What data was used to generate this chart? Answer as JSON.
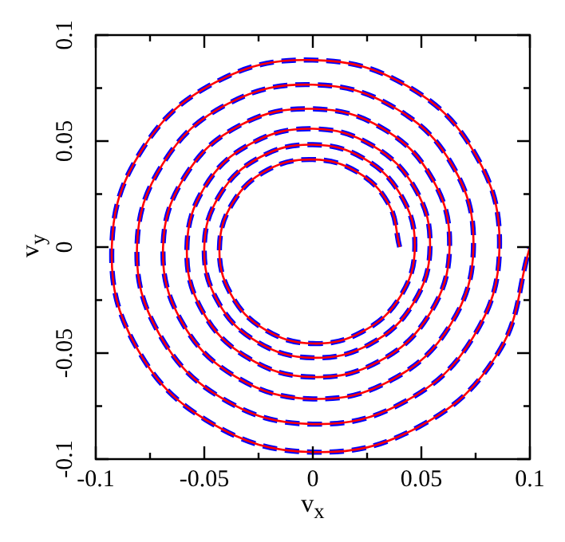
{
  "chart_data": {
    "type": "line",
    "xlabel": "v$_{x}$",
    "ylabel": "v$_{y}$",
    "marker": "none",
    "xlim": [
      -0.1,
      0.1
    ],
    "ylim": [
      -0.1,
      0.1
    ],
    "xticks": [
      -0.1,
      {
        "value": -0.075,
        "label": null
      },
      -0.05,
      {
        "value": -0.025,
        "label": null
      },
      0,
      {
        "value": 0.025,
        "label": null
      },
      0.05,
      {
        "value": 0.075,
        "label": null
      },
      0.1
    ],
    "yticks": [
      -0.1,
      {
        "value": -0.075,
        "label": null
      },
      -0.05,
      {
        "value": -0.025,
        "label": null
      },
      0,
      {
        "value": 0.025,
        "label": null
      },
      0.05,
      {
        "value": 0.075,
        "label": null
      },
      0.1
    ],
    "series": [
      {
        "color": "#ff0000",
        "line_style": "solid",
        "x": [
          0.04,
          0.035,
          0.0205,
          0,
          -0.021,
          -0.0367,
          -0.043,
          -0.0379,
          -0.0224,
          0,
          0.023,
          0.0403,
          0.047,
          0.041,
          0.024,
          0,
          -0.0245,
          -0.0428,
          -0.05,
          -0.0439,
          -0.0258,
          0,
          0.0264,
          0.0462,
          0.054,
          0.0473,
          0.0276,
          0,
          -0.0283,
          -0.0496,
          -0.058,
          -0.0512,
          -0.0301,
          0,
          0.031,
          0.054,
          0.063,
          0.0552,
          0.0323,
          0,
          -0.0333,
          -0.0586,
          -0.069,
          -0.0605,
          -0.0354,
          0,
          0.0362,
          0.0634,
          0.074,
          0.0649,
          0.0379,
          0,
          -0.0391,
          -0.0688,
          -0.081,
          -0.0708,
          -0.0414,
          0,
          0.0422,
          0.0738,
          0.086,
          0.0751,
          0.0438,
          0,
          -0.0449,
          -0.0789,
          -0.0926,
          -0.0814,
          -0.0477,
          0,
          0.0489,
          0.0856,
          0.1
        ],
        "values": [
          0,
          0.0202,
          0.0354,
          0.0413,
          0.0363,
          0.0212,
          0,
          -0.0219,
          -0.0387,
          -0.0455,
          -0.0398,
          -0.0233,
          0,
          0.0237,
          0.0415,
          0.0483,
          0.0423,
          0.0247,
          0,
          -0.0254,
          -0.0446,
          -0.0522,
          -0.0457,
          -0.0267,
          0,
          0.0273,
          0.0478,
          0.0558,
          0.0489,
          0.0287,
          0,
          -0.0296,
          -0.0521,
          -0.0613,
          -0.0536,
          -0.0312,
          0,
          0.0319,
          0.0559,
          0.0652,
          0.0576,
          0.0339,
          0,
          -0.035,
          -0.0612,
          -0.0716,
          -0.0627,
          -0.0366,
          0,
          0.0375,
          0.0656,
          0.0766,
          0.0676,
          0.0398,
          0,
          -0.0409,
          -0.0716,
          -0.0835,
          -0.073,
          -0.0426,
          0,
          0.0434,
          0.0758,
          0.0882,
          0.0777,
          0.0456,
          0,
          -0.047,
          -0.0825,
          -0.0967,
          -0.0847,
          -0.0495,
          0
        ]
      },
      {
        "color": "#0000ff",
        "line_style": "dashed",
        "x": [
          0.04,
          0.035,
          0.0205,
          0,
          -0.021,
          -0.0367,
          -0.043,
          -0.0379,
          -0.0224,
          0,
          0.023,
          0.0403,
          0.047,
          0.041,
          0.024,
          0,
          -0.0245,
          -0.0428,
          -0.05,
          -0.0439,
          -0.0258,
          0,
          0.0264,
          0.0462,
          0.054,
          0.0473,
          0.0276,
          0,
          -0.0283,
          -0.0496,
          -0.058,
          -0.0512,
          -0.0301,
          0,
          0.031,
          0.054,
          0.063,
          0.0552,
          0.0323,
          0,
          -0.0333,
          -0.0586,
          -0.069,
          -0.0605,
          -0.0354,
          0,
          0.0362,
          0.0634,
          0.074,
          0.0649,
          0.0379,
          0,
          -0.0391,
          -0.0688,
          -0.081,
          -0.0708,
          -0.0414,
          0,
          0.0422,
          0.0738,
          0.086,
          0.0751,
          0.0438,
          0,
          -0.0449,
          -0.0789,
          -0.0926,
          -0.0814,
          -0.0477,
          0,
          0.0489,
          0.0856,
          0.1
        ],
        "values": [
          0,
          0.0202,
          0.0354,
          0.0413,
          0.0363,
          0.0212,
          0,
          -0.0219,
          -0.0387,
          -0.0455,
          -0.0398,
          -0.0233,
          0,
          0.0237,
          0.0415,
          0.0483,
          0.0423,
          0.0247,
          0,
          -0.0254,
          -0.0446,
          -0.0522,
          -0.0457,
          -0.0267,
          0,
          0.0273,
          0.0478,
          0.0558,
          0.0489,
          0.0287,
          0,
          -0.0296,
          -0.0521,
          -0.0613,
          -0.0536,
          -0.0312,
          0,
          0.0319,
          0.0559,
          0.0652,
          0.0576,
          0.0339,
          0,
          -0.035,
          -0.0612,
          -0.0716,
          -0.0627,
          -0.0366,
          0,
          0.0375,
          0.0656,
          0.0766,
          0.0676,
          0.0398,
          0,
          -0.0409,
          -0.0716,
          -0.0835,
          -0.073,
          -0.0426,
          0,
          0.0434,
          0.0758,
          0.0882,
          0.0777,
          0.0456,
          0,
          -0.047,
          -0.0825,
          -0.0967,
          -0.0847,
          -0.0495,
          0
        ]
      }
    ]
  }
}
